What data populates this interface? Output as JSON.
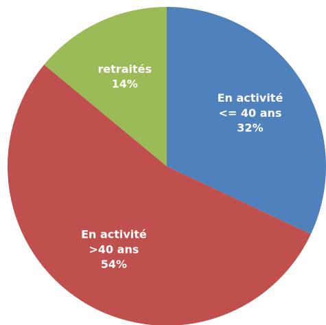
{
  "chart_data": {
    "type": "pie",
    "categories": [
      "En activité\n<= 40 ans",
      "En activité\n>40 ans",
      "retraités"
    ],
    "values": [
      32,
      54,
      14
    ],
    "value_labels": [
      "32%",
      "54%",
      "14%"
    ],
    "colors": [
      "#4f81bd",
      "#c0504d",
      "#9bbb59"
    ]
  }
}
